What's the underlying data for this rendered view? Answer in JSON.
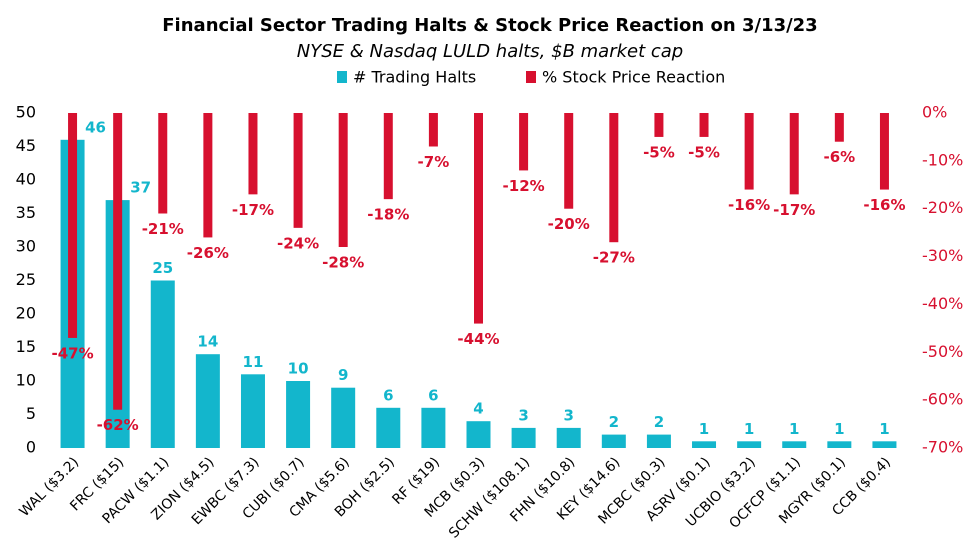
{
  "chart_data": {
    "type": "bar_dual",
    "title": "Financial Sector Trading Halts & Stock Price Reaction on 3/13/23",
    "subtitle": "NYSE & Nasdaq LULD halts, $B market cap",
    "categories": [
      "WAL ($3.2)",
      "FRC ($15)",
      "PACW ($1.1)",
      "ZION ($4.5)",
      "EWBC ($7.3)",
      "CUBI ($0.7)",
      "CMA ($5.6)",
      "BOH ($2.5)",
      "RF ($19)",
      "MCB ($0.3)",
      "SCHW ($108.1)",
      "FHN ($10.8)",
      "KEY ($14.6)",
      "MCBC ($0.3)",
      "ASRV ($0.1)",
      "UCBIO ($3.2)",
      "OCFCP ($1.1)",
      "MGYR ($0.1)",
      "CCB ($0.4)"
    ],
    "series": [
      {
        "name": "# Trading Halts",
        "color": "#13b6cc",
        "values": [
          46,
          37,
          25,
          14,
          11,
          10,
          9,
          6,
          6,
          4,
          3,
          3,
          2,
          2,
          1,
          1,
          1,
          1,
          1
        ]
      },
      {
        "name": "% Stock Price Reaction",
        "color": "#d7102f",
        "axis": "y2",
        "values": [
          -47,
          -62,
          -21,
          -26,
          -17,
          -24,
          -28,
          -18,
          -7,
          -44,
          -12,
          -20,
          -27,
          -5,
          -5,
          -16,
          -17,
          -6,
          -16
        ],
        "value_labels": [
          "-47%",
          "-62%",
          "-21%",
          "-26%",
          "-17%",
          "-24%",
          "-28%",
          "-18%",
          "-7%",
          "-44%",
          "-12%",
          "-20%",
          "-27%",
          "-5%",
          "-5%",
          "-16%",
          "-17%",
          "-6%",
          "-16%"
        ]
      }
    ],
    "ylim": [
      0,
      50
    ],
    "yticks": [
      0,
      5,
      10,
      15,
      20,
      25,
      30,
      35,
      40,
      45,
      50
    ],
    "y2lim": [
      -70,
      0
    ],
    "y2ticks": [
      {
        "value": 0,
        "label": "0%"
      },
      {
        "value": -10,
        "label": "-10%"
      },
      {
        "value": -20,
        "label": "-20%"
      },
      {
        "value": -30,
        "label": "-30%"
      },
      {
        "value": -40,
        "label": "-40%"
      },
      {
        "value": -50,
        "label": "-50%"
      },
      {
        "value": -60,
        "label": "-60%"
      },
      {
        "value": -70,
        "label": "-70%"
      }
    ]
  }
}
